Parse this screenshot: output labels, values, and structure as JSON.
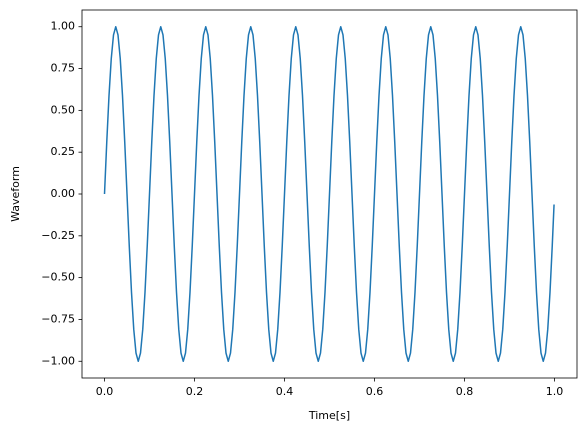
{
  "chart_data": {
    "type": "line",
    "xlabel": "Time[s]",
    "ylabel": "Waveform",
    "color": "#1f77b4",
    "xlim": [
      -0.05,
      1.05
    ],
    "ylim": [
      -1.1,
      1.1
    ],
    "xticks": [
      {
        "value": 0,
        "label": "0.0"
      },
      0.2,
      0.4,
      0.6,
      0.8,
      {
        "value": 1,
        "label": "1.0"
      }
    ],
    "yticks": [
      {
        "value": -1,
        "label": "−1.00"
      },
      {
        "value": -0.75,
        "label": "−0.75"
      },
      {
        "value": -0.5,
        "label": "−0.50"
      },
      {
        "value": -0.25,
        "label": "−0.25"
      },
      {
        "value": 0,
        "label": "0.00"
      },
      {
        "value": 0.25,
        "label": "0.25"
      },
      {
        "value": 0.5,
        "label": "0.50"
      },
      {
        "value": 0.75,
        "label": "0.75"
      },
      {
        "value": 1,
        "label": "1.00"
      }
    ],
    "x": [
      0,
      0.005,
      0.01,
      0.015,
      0.02,
      0.025,
      0.03,
      0.035,
      0.04,
      0.045,
      0.05,
      0.055,
      0.06,
      0.065,
      0.07,
      0.075,
      0.08,
      0.085,
      0.09,
      0.095,
      0.1,
      0.105,
      0.11,
      0.115,
      0.12,
      0.125,
      0.13,
      0.135,
      0.14,
      0.145,
      0.15,
      0.155,
      0.16,
      0.165,
      0.17,
      0.175,
      0.18,
      0.185,
      0.19,
      0.195,
      0.2,
      0.205,
      0.21,
      0.215,
      0.22,
      0.225,
      0.23,
      0.235,
      0.24,
      0.245,
      0.25,
      0.255,
      0.26,
      0.265,
      0.27,
      0.275,
      0.28,
      0.285,
      0.29,
      0.295,
      0.3,
      0.305,
      0.31,
      0.315,
      0.32,
      0.325,
      0.33,
      0.335,
      0.34,
      0.345,
      0.35,
      0.355,
      0.36,
      0.365,
      0.37,
      0.375,
      0.38,
      0.385,
      0.39,
      0.395,
      0.4,
      0.405,
      0.41,
      0.415,
      0.42,
      0.425,
      0.43,
      0.435,
      0.44,
      0.445,
      0.45,
      0.455,
      0.46,
      0.465,
      0.47,
      0.475,
      0.48,
      0.485,
      0.49,
      0.495,
      0.5,
      0.505,
      0.51,
      0.515,
      0.52,
      0.525,
      0.53,
      0.535,
      0.54,
      0.545,
      0.55,
      0.555,
      0.56,
      0.565,
      0.57,
      0.575,
      0.58,
      0.585,
      0.59,
      0.595,
      0.6,
      0.605,
      0.61,
      0.615,
      0.62,
      0.625,
      0.63,
      0.635,
      0.64,
      0.645,
      0.65,
      0.655,
      0.66,
      0.665,
      0.67,
      0.675,
      0.68,
      0.685,
      0.69,
      0.695,
      0.7,
      0.705,
      0.71,
      0.715,
      0.72,
      0.725,
      0.73,
      0.735,
      0.74,
      0.745,
      0.75,
      0.755,
      0.76,
      0.765,
      0.77,
      0.775,
      0.78,
      0.785,
      0.79,
      0.795,
      0.8,
      0.805,
      0.81,
      0.815,
      0.82,
      0.825,
      0.83,
      0.835,
      0.84,
      0.845,
      0.85,
      0.855,
      0.86,
      0.865,
      0.87,
      0.875,
      0.88,
      0.885,
      0.89,
      0.895,
      0.9,
      0.905,
      0.91,
      0.915,
      0.92,
      0.925,
      0.93,
      0.935,
      0.94,
      0.945,
      0.95,
      0.955,
      0.96,
      0.965,
      0.97,
      0.975,
      0.98,
      0.985,
      0.99,
      0.995,
      0.999
    ],
    "values": [
      0,
      0.309,
      0.5878,
      0.809,
      0.9511,
      1,
      0.9511,
      0.809,
      0.5878,
      0.309,
      0,
      -0.309,
      -0.5878,
      -0.809,
      -0.9511,
      -1,
      -0.9511,
      -0.809,
      -0.5878,
      -0.309,
      0,
      0.309,
      0.5878,
      0.809,
      0.9511,
      1,
      0.9511,
      0.809,
      0.5878,
      0.309,
      0,
      -0.309,
      -0.5878,
      -0.809,
      -0.9511,
      -1,
      -0.9511,
      -0.809,
      -0.5878,
      -0.309,
      0,
      0.309,
      0.5878,
      0.809,
      0.9511,
      1,
      0.9511,
      0.809,
      0.5878,
      0.309,
      0,
      -0.309,
      -0.5878,
      -0.809,
      -0.9511,
      -1,
      -0.9511,
      -0.809,
      -0.5878,
      -0.309,
      0,
      0.309,
      0.5878,
      0.809,
      0.9511,
      1,
      0.9511,
      0.809,
      0.5878,
      0.309,
      0,
      -0.309,
      -0.5878,
      -0.809,
      -0.9511,
      -1,
      -0.9511,
      -0.809,
      -0.5878,
      -0.309,
      0,
      0.309,
      0.5878,
      0.809,
      0.9511,
      1,
      0.9511,
      0.809,
      0.5878,
      0.309,
      0,
      -0.309,
      -0.5878,
      -0.809,
      -0.9511,
      -1,
      -0.9511,
      -0.809,
      -0.5878,
      -0.309,
      0,
      0.309,
      0.5878,
      0.809,
      0.9511,
      1,
      0.9511,
      0.809,
      0.5878,
      0.309,
      0,
      -0.309,
      -0.5878,
      -0.809,
      -0.9511,
      -1,
      -0.9511,
      -0.809,
      -0.5878,
      -0.309,
      0,
      0.309,
      0.5878,
      0.809,
      0.9511,
      1,
      0.9511,
      0.809,
      0.5878,
      0.309,
      0,
      -0.309,
      -0.5878,
      -0.809,
      -0.9511,
      -1,
      -0.9511,
      -0.809,
      -0.5878,
      -0.309,
      0,
      0.309,
      0.5878,
      0.809,
      0.9511,
      1,
      0.9511,
      0.809,
      0.5878,
      0.309,
      0,
      -0.309,
      -0.5878,
      -0.809,
      -0.9511,
      -1,
      -0.9511,
      -0.809,
      -0.5878,
      -0.309,
      0,
      0.309,
      0.5878,
      0.809,
      0.9511,
      1,
      0.9511,
      0.809,
      0.5878,
      0.309,
      0,
      -0.309,
      -0.5878,
      -0.809,
      -0.9511,
      -1,
      -0.9511,
      -0.809,
      -0.5878,
      -0.309,
      0,
      0.309,
      0.5878,
      0.809,
      0.9511,
      1,
      0.9511,
      0.809,
      0.5878,
      0.309,
      0,
      -0.309,
      -0.5878,
      -0.809,
      -0.9511,
      -1,
      -0.9511,
      -0.809,
      -0.5878,
      -0.309,
      -0.0628
    ]
  }
}
